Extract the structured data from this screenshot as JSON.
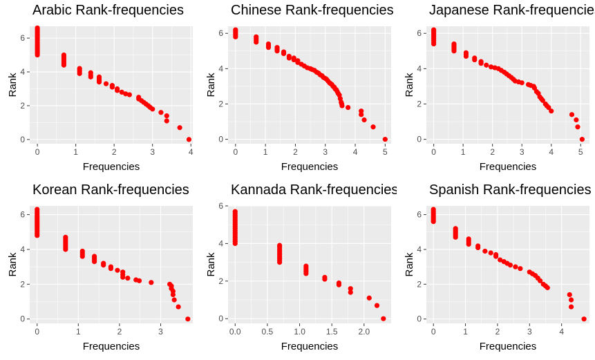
{
  "style": {
    "panel_bg": "#EBEBEB",
    "grid_major": "#FFFFFF",
    "point_color": "#FF0000"
  },
  "chart_data": [
    {
      "type": "scatter",
      "title": "Arabic Rank-frequencies",
      "xlabel": "Frequencies",
      "ylabel": "Rank",
      "xlim": [
        -0.2,
        4.05
      ],
      "ylim": [
        -0.25,
        6.7
      ],
      "xticks": [
        0,
        1,
        2,
        3,
        4
      ],
      "yticks": [
        0,
        2,
        4,
        6
      ],
      "grid": true,
      "points": [
        [
          0,
          5.0
        ],
        [
          0,
          5.1
        ],
        [
          0,
          5.2
        ],
        [
          0,
          5.3
        ],
        [
          0,
          5.4
        ],
        [
          0,
          5.5
        ],
        [
          0,
          5.6
        ],
        [
          0,
          5.7
        ],
        [
          0,
          5.8
        ],
        [
          0,
          5.9
        ],
        [
          0,
          6.0
        ],
        [
          0,
          6.1
        ],
        [
          0,
          6.2
        ],
        [
          0,
          6.3
        ],
        [
          0,
          6.4
        ],
        [
          0,
          6.5
        ],
        [
          0,
          6.6
        ],
        [
          0.69,
          4.4
        ],
        [
          0.69,
          4.5
        ],
        [
          0.69,
          4.6
        ],
        [
          0.69,
          4.7
        ],
        [
          0.69,
          4.8
        ],
        [
          0.69,
          4.9
        ],
        [
          0.69,
          5.0
        ],
        [
          1.1,
          3.9
        ],
        [
          1.1,
          4.0
        ],
        [
          1.1,
          4.1
        ],
        [
          1.1,
          4.2
        ],
        [
          1.39,
          3.7
        ],
        [
          1.39,
          3.8
        ],
        [
          1.39,
          3.95
        ],
        [
          1.61,
          3.4
        ],
        [
          1.61,
          3.5
        ],
        [
          1.61,
          3.6
        ],
        [
          1.61,
          3.7
        ],
        [
          1.79,
          3.3
        ],
        [
          1.95,
          3.2
        ],
        [
          1.95,
          3.1
        ],
        [
          2.08,
          3.0
        ],
        [
          2.08,
          2.9
        ],
        [
          2.2,
          2.8
        ],
        [
          2.3,
          2.7
        ],
        [
          2.4,
          2.65
        ],
        [
          2.64,
          2.5
        ],
        [
          2.64,
          2.4
        ],
        [
          2.71,
          2.3
        ],
        [
          2.77,
          2.2
        ],
        [
          2.83,
          2.1
        ],
        [
          2.89,
          2.0
        ],
        [
          2.94,
          1.9
        ],
        [
          3.0,
          1.8
        ],
        [
          3.22,
          1.6
        ],
        [
          3.37,
          1.4
        ],
        [
          3.37,
          1.1
        ],
        [
          3.71,
          0.7
        ],
        [
          3.95,
          0.0
        ]
      ]
    },
    {
      "type": "scatter",
      "title": "Chinese Rank-frequencies",
      "xlabel": "Frequencies",
      "ylabel": "Rank",
      "xlim": [
        -0.25,
        5.2
      ],
      "ylim": [
        -0.25,
        6.4
      ],
      "xticks": [
        0,
        1,
        2,
        3,
        4,
        5
      ],
      "yticks": [
        0,
        2,
        4,
        6
      ],
      "grid": true,
      "points": [
        [
          0,
          5.8
        ],
        [
          0,
          5.9
        ],
        [
          0,
          6.0
        ],
        [
          0,
          6.1
        ],
        [
          0,
          6.2
        ],
        [
          0.69,
          5.5
        ],
        [
          0.69,
          5.6
        ],
        [
          0.69,
          5.7
        ],
        [
          0.69,
          5.8
        ],
        [
          1.1,
          5.2
        ],
        [
          1.1,
          5.3
        ],
        [
          1.1,
          5.4
        ],
        [
          1.39,
          5.0
        ],
        [
          1.39,
          5.1
        ],
        [
          1.39,
          5.2
        ],
        [
          1.61,
          4.85
        ],
        [
          1.61,
          4.95
        ],
        [
          1.79,
          4.6
        ],
        [
          1.79,
          4.7
        ],
        [
          1.95,
          4.5
        ],
        [
          1.95,
          4.6
        ],
        [
          2.08,
          4.35
        ],
        [
          2.08,
          4.45
        ],
        [
          2.2,
          4.25
        ],
        [
          2.3,
          4.15
        ],
        [
          2.4,
          4.05
        ],
        [
          2.5,
          4.0
        ],
        [
          2.56,
          3.95
        ],
        [
          2.64,
          3.9
        ],
        [
          2.71,
          3.8
        ],
        [
          2.77,
          3.75
        ],
        [
          2.83,
          3.65
        ],
        [
          2.89,
          3.6
        ],
        [
          2.94,
          3.5
        ],
        [
          3.0,
          3.45
        ],
        [
          3.04,
          3.4
        ],
        [
          3.09,
          3.3
        ],
        [
          3.14,
          3.2
        ],
        [
          3.18,
          3.15
        ],
        [
          3.22,
          3.1
        ],
        [
          3.26,
          3.0
        ],
        [
          3.3,
          2.95
        ],
        [
          3.33,
          2.85
        ],
        [
          3.37,
          2.8
        ],
        [
          3.4,
          2.7
        ],
        [
          3.43,
          2.6
        ],
        [
          3.47,
          2.5
        ],
        [
          3.5,
          2.3
        ],
        [
          3.53,
          2.1
        ],
        [
          3.55,
          2.0
        ],
        [
          3.56,
          1.9
        ],
        [
          3.76,
          1.8
        ],
        [
          4.2,
          1.6
        ],
        [
          4.2,
          1.4
        ],
        [
          4.3,
          1.1
        ],
        [
          4.6,
          0.7
        ],
        [
          5.0,
          0.0
        ]
      ]
    },
    {
      "type": "scatter",
      "title": "Japanese Rank-frequencies",
      "xlabel": "Frequencies",
      "ylabel": "Rank",
      "xlim": [
        -0.25,
        5.3
      ],
      "ylim": [
        -0.25,
        6.4
      ],
      "xticks": [
        0,
        1,
        2,
        3,
        4,
        5
      ],
      "yticks": [
        0,
        2,
        4,
        6
      ],
      "grid": true,
      "points": [
        [
          0,
          5.4
        ],
        [
          0,
          5.5
        ],
        [
          0,
          5.6
        ],
        [
          0,
          5.7
        ],
        [
          0,
          5.8
        ],
        [
          0,
          5.9
        ],
        [
          0,
          6.0
        ],
        [
          0,
          6.1
        ],
        [
          0,
          6.2
        ],
        [
          0.69,
          5.0
        ],
        [
          0.69,
          5.1
        ],
        [
          0.69,
          5.2
        ],
        [
          0.69,
          5.3
        ],
        [
          0.69,
          5.4
        ],
        [
          1.1,
          4.7
        ],
        [
          1.1,
          4.8
        ],
        [
          1.1,
          4.9
        ],
        [
          1.39,
          4.5
        ],
        [
          1.39,
          4.6
        ],
        [
          1.61,
          4.3
        ],
        [
          1.61,
          4.4
        ],
        [
          1.79,
          4.2
        ],
        [
          1.95,
          4.1
        ],
        [
          2.08,
          4.05
        ],
        [
          2.2,
          4.0
        ],
        [
          2.3,
          3.9
        ],
        [
          2.4,
          3.8
        ],
        [
          2.48,
          3.7
        ],
        [
          2.56,
          3.6
        ],
        [
          2.64,
          3.5
        ],
        [
          2.71,
          3.4
        ],
        [
          2.77,
          3.3
        ],
        [
          2.89,
          3.25
        ],
        [
          3.0,
          3.2
        ],
        [
          3.22,
          3.1
        ],
        [
          3.3,
          3.05
        ],
        [
          3.4,
          3.0
        ],
        [
          3.43,
          2.9
        ],
        [
          3.5,
          2.7
        ],
        [
          3.56,
          2.6
        ],
        [
          3.61,
          2.4
        ],
        [
          3.66,
          2.3
        ],
        [
          3.71,
          2.2
        ],
        [
          3.8,
          2.0
        ],
        [
          3.85,
          1.9
        ],
        [
          3.91,
          1.8
        ],
        [
          4.0,
          1.6
        ],
        [
          4.7,
          1.4
        ],
        [
          4.85,
          1.1
        ],
        [
          4.9,
          0.7
        ],
        [
          5.05,
          0.0
        ]
      ]
    },
    {
      "type": "scatter",
      "title": "Korean Rank-frequencies",
      "xlabel": "Frequencies",
      "ylabel": "Rank",
      "xlim": [
        -0.18,
        3.78
      ],
      "ylim": [
        -0.25,
        6.5
      ],
      "xticks": [
        0,
        1,
        2,
        3
      ],
      "yticks": [
        0,
        2,
        4,
        6
      ],
      "grid": true,
      "points": [
        [
          0,
          4.8
        ],
        [
          0,
          4.9
        ],
        [
          0,
          5.0
        ],
        [
          0,
          5.1
        ],
        [
          0,
          5.2
        ],
        [
          0,
          5.3
        ],
        [
          0,
          5.4
        ],
        [
          0,
          5.5
        ],
        [
          0,
          5.6
        ],
        [
          0,
          5.7
        ],
        [
          0,
          5.8
        ],
        [
          0,
          5.9
        ],
        [
          0,
          6.0
        ],
        [
          0,
          6.1
        ],
        [
          0,
          6.2
        ],
        [
          0,
          6.3
        ],
        [
          0.69,
          4.0
        ],
        [
          0.69,
          4.1
        ],
        [
          0.69,
          4.2
        ],
        [
          0.69,
          4.3
        ],
        [
          0.69,
          4.4
        ],
        [
          0.69,
          4.5
        ],
        [
          0.69,
          4.6
        ],
        [
          0.69,
          4.7
        ],
        [
          1.1,
          3.6
        ],
        [
          1.1,
          3.7
        ],
        [
          1.1,
          3.8
        ],
        [
          1.1,
          3.9
        ],
        [
          1.39,
          3.3
        ],
        [
          1.39,
          3.4
        ],
        [
          1.39,
          3.5
        ],
        [
          1.39,
          3.6
        ],
        [
          1.61,
          3.1
        ],
        [
          1.61,
          3.2
        ],
        [
          1.79,
          3.0
        ],
        [
          1.79,
          2.9
        ],
        [
          1.95,
          2.8
        ],
        [
          2.08,
          2.7
        ],
        [
          2.08,
          2.55
        ],
        [
          2.08,
          2.4
        ],
        [
          2.2,
          2.35
        ],
        [
          2.4,
          2.25
        ],
        [
          2.48,
          2.2
        ],
        [
          2.77,
          2.1
        ],
        [
          3.22,
          2.0
        ],
        [
          3.26,
          1.9
        ],
        [
          3.26,
          1.75
        ],
        [
          3.3,
          1.6
        ],
        [
          3.3,
          1.4
        ],
        [
          3.33,
          1.1
        ],
        [
          3.43,
          0.7
        ],
        [
          3.66,
          0.0
        ]
      ]
    },
    {
      "type": "scatter",
      "title": "Kannada Rank-frequencies",
      "xlabel": "Frequencies",
      "ylabel": "Rank",
      "xlim": [
        -0.11,
        2.42
      ],
      "ylim": [
        -0.25,
        6.0
      ],
      "xticks": [
        0.0,
        0.5,
        1.0,
        1.5,
        2.0
      ],
      "yticks": [
        0,
        2,
        4,
        6
      ],
      "grid": true,
      "points": [
        [
          0,
          4.0
        ],
        [
          0,
          4.1
        ],
        [
          0,
          4.2
        ],
        [
          0,
          4.3
        ],
        [
          0,
          4.4
        ],
        [
          0,
          4.5
        ],
        [
          0,
          4.6
        ],
        [
          0,
          4.7
        ],
        [
          0,
          4.8
        ],
        [
          0,
          4.9
        ],
        [
          0,
          5.0
        ],
        [
          0,
          5.1
        ],
        [
          0,
          5.2
        ],
        [
          0,
          5.3
        ],
        [
          0,
          5.4
        ],
        [
          0,
          5.5
        ],
        [
          0,
          5.6
        ],
        [
          0,
          5.7
        ],
        [
          0.69,
          3.0
        ],
        [
          0.69,
          3.1
        ],
        [
          0.69,
          3.2
        ],
        [
          0.69,
          3.3
        ],
        [
          0.69,
          3.4
        ],
        [
          0.69,
          3.5
        ],
        [
          0.69,
          3.6
        ],
        [
          0.69,
          3.7
        ],
        [
          0.69,
          3.8
        ],
        [
          0.69,
          3.9
        ],
        [
          1.1,
          2.4
        ],
        [
          1.1,
          2.5
        ],
        [
          1.1,
          2.6
        ],
        [
          1.1,
          2.7
        ],
        [
          1.1,
          2.8
        ],
        [
          1.39,
          2.1
        ],
        [
          1.39,
          2.2
        ],
        [
          1.61,
          1.8
        ],
        [
          1.61,
          1.9
        ],
        [
          1.79,
          1.4
        ],
        [
          1.79,
          1.6
        ],
        [
          2.08,
          1.1
        ],
        [
          2.2,
          0.7
        ],
        [
          2.3,
          0.0
        ]
      ]
    },
    {
      "type": "scatter",
      "title": "Spanish Rank-frequencies",
      "xlabel": "Frequencies",
      "ylabel": "Rank",
      "xlim": [
        -0.22,
        4.87
      ],
      "ylim": [
        -0.25,
        6.5
      ],
      "xticks": [
        0,
        1,
        2,
        3,
        4
      ],
      "yticks": [
        0,
        2,
        4,
        6
      ],
      "grid": true,
      "points": [
        [
          0,
          5.6
        ],
        [
          0,
          5.7
        ],
        [
          0,
          5.8
        ],
        [
          0,
          5.9
        ],
        [
          0,
          6.0
        ],
        [
          0,
          6.1
        ],
        [
          0,
          6.2
        ],
        [
          0,
          6.3
        ],
        [
          0.69,
          4.7
        ],
        [
          0.69,
          4.8
        ],
        [
          0.69,
          4.9
        ],
        [
          0.69,
          5.0
        ],
        [
          0.69,
          5.1
        ],
        [
          0.69,
          5.2
        ],
        [
          1.1,
          4.3
        ],
        [
          1.1,
          4.4
        ],
        [
          1.1,
          4.5
        ],
        [
          1.1,
          4.6
        ],
        [
          1.39,
          4.1
        ],
        [
          1.39,
          4.2
        ],
        [
          1.61,
          3.9
        ],
        [
          1.79,
          3.8
        ],
        [
          1.95,
          3.7
        ],
        [
          1.95,
          3.6
        ],
        [
          2.08,
          3.4
        ],
        [
          2.2,
          3.3
        ],
        [
          2.3,
          3.2
        ],
        [
          2.4,
          3.1
        ],
        [
          2.56,
          3.0
        ],
        [
          2.71,
          2.9
        ],
        [
          3.0,
          2.7
        ],
        [
          3.09,
          2.6
        ],
        [
          3.18,
          2.5
        ],
        [
          3.26,
          2.35
        ],
        [
          3.33,
          2.2
        ],
        [
          3.43,
          2.0
        ],
        [
          3.5,
          1.9
        ],
        [
          3.56,
          1.8
        ],
        [
          4.25,
          1.4
        ],
        [
          4.3,
          1.1
        ],
        [
          4.3,
          0.7
        ],
        [
          4.7,
          0.0
        ]
      ]
    }
  ]
}
